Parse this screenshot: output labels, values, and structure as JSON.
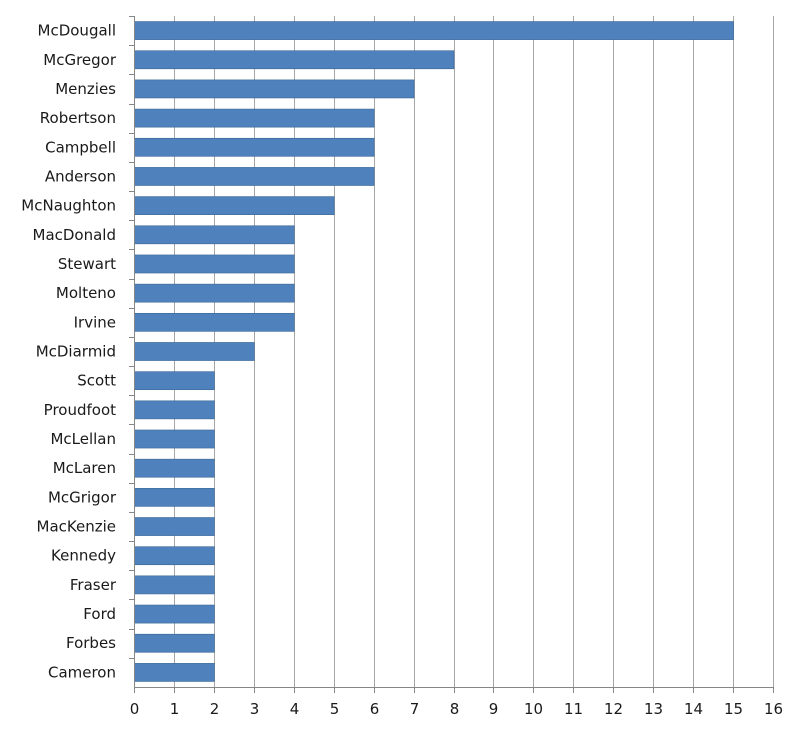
{
  "chart_data": {
    "type": "bar",
    "orientation": "horizontal",
    "categories": [
      "McDougall",
      "McGregor",
      "Menzies",
      "Robertson",
      "Campbell",
      "Anderson",
      "McNaughton",
      "MacDonald",
      "Stewart",
      "Molteno",
      "Irvine",
      "McDiarmid",
      "Scott",
      "Proudfoot",
      "McLellan",
      "McLaren",
      "McGrigor",
      "MacKenzie",
      "Kennedy",
      "Fraser",
      "Ford",
      "Forbes",
      "Cameron"
    ],
    "values": [
      15,
      8,
      7,
      6,
      6,
      6,
      5,
      4,
      4,
      4,
      4,
      3,
      2,
      2,
      2,
      2,
      2,
      2,
      2,
      2,
      2,
      2,
      2
    ],
    "x_ticks": [
      "0",
      "1",
      "2",
      "3",
      "4",
      "5",
      "6",
      "7",
      "8",
      "9",
      "10",
      "11",
      "12",
      "13",
      "14",
      "15",
      "16"
    ],
    "xlim": [
      0,
      16
    ],
    "title": "",
    "xlabel": "",
    "ylabel": "",
    "grid": "vertical",
    "legend": "none",
    "colors": {
      "bar": "#4f81bd",
      "bar_edge": "#3a6796",
      "grid": "#a6a6a6",
      "axis": "#868686"
    }
  }
}
